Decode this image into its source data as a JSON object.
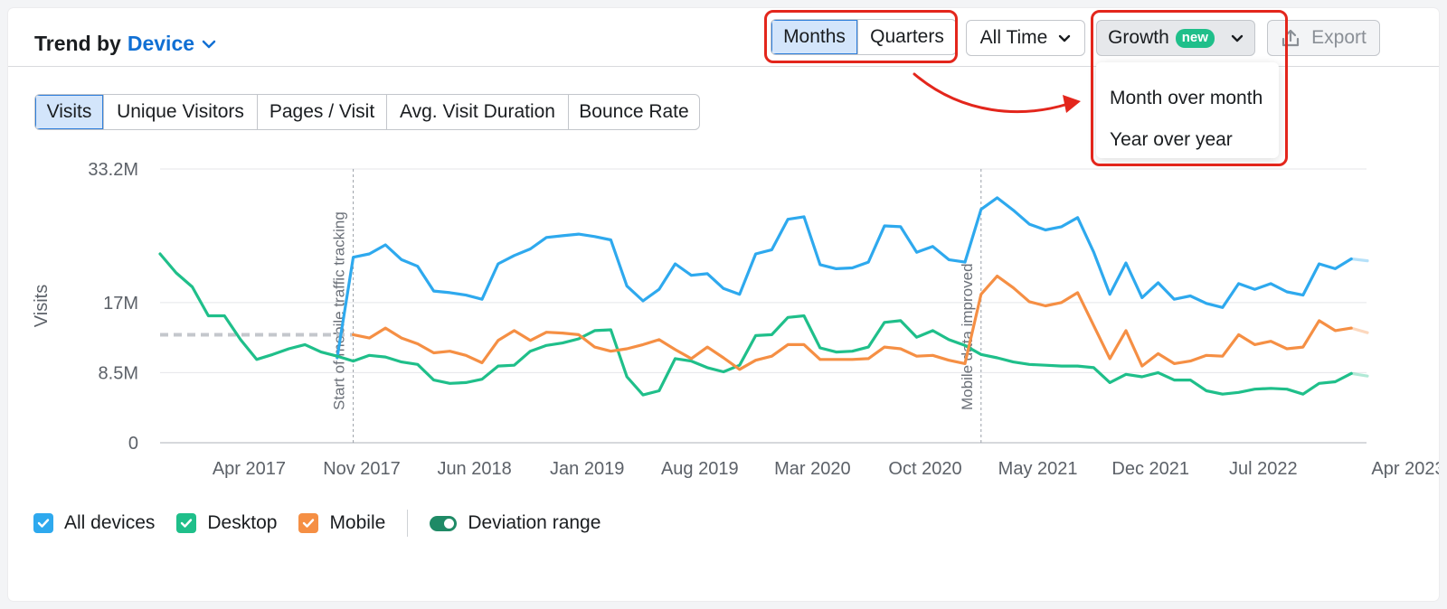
{
  "header": {
    "title_prefix": "Trend by",
    "title_dimension": "Device",
    "period_tabs": [
      "Months",
      "Quarters"
    ],
    "active_period": "Months",
    "time_range": "All Time",
    "growth_label": "Growth",
    "growth_badge": "new",
    "export_label": "Export"
  },
  "growth_menu": {
    "options": [
      "Month over month",
      "Year over year"
    ]
  },
  "metric_tabs": [
    "Visits",
    "Unique Visitors",
    "Pages / Visit",
    "Avg. Visit Duration",
    "Bounce Rate"
  ],
  "active_metric": "Visits",
  "legend": {
    "items": [
      {
        "label": "All devices",
        "color": "#2ea9ee"
      },
      {
        "label": "Desktop",
        "color": "#1fbf8a"
      },
      {
        "label": "Mobile",
        "color": "#f58f44"
      }
    ],
    "toggle_label": "Deviation range",
    "toggle_color": "#1f8a66"
  },
  "colors": {
    "accent": "#1170d4",
    "annotation": "#e3261c"
  },
  "chart_data": {
    "type": "line",
    "ylabel": "Visits",
    "y_ticks": [
      {
        "label": "0",
        "value": 0
      },
      {
        "label": "8.5M",
        "value": 8.5
      },
      {
        "label": "17M",
        "value": 17
      },
      {
        "label": "33.2M",
        "value": 33.2
      }
    ],
    "ylim": [
      0,
      33.2
    ],
    "x_ticks": [
      {
        "label": "Apr 2017",
        "index": 3
      },
      {
        "label": "Nov 2017",
        "index": 10
      },
      {
        "label": "Jun 2018",
        "index": 17
      },
      {
        "label": "Jan 2019",
        "index": 24
      },
      {
        "label": "Aug 2019",
        "index": 31
      },
      {
        "label": "Mar 2020",
        "index": 38
      },
      {
        "label": "Oct 2020",
        "index": 45
      },
      {
        "label": "May 2021",
        "index": 52
      },
      {
        "label": "Dec 2021",
        "index": 59
      },
      {
        "label": "Jul 2022",
        "index": 66
      },
      {
        "label": "Apr 2023",
        "index": 75
      }
    ],
    "first_month": "Jan 2017",
    "annotations": [
      {
        "label": "Start of mobile traffic tracking",
        "index": 12
      },
      {
        "label": "Mobile data improved",
        "index": 51
      }
    ],
    "legend_placement": "bottom-left",
    "grid": true,
    "series": [
      {
        "name": "All devices",
        "color": "#2ea9ee",
        "start_index": 0,
        "values": [
          null,
          null,
          null,
          null,
          null,
          null,
          null,
          null,
          null,
          null,
          null,
          10.3,
          22.5,
          22.9,
          24.0,
          22.2,
          21.4,
          18.4,
          18.2,
          17.9,
          17.4,
          21.7,
          22.7,
          23.5,
          24.9,
          25.1,
          25.3,
          25.0,
          24.6,
          19.0,
          17.2,
          18.6,
          21.7,
          20.3,
          20.5,
          18.7,
          18.0,
          22.9,
          23.4,
          27.1,
          27.4,
          21.6,
          21.1,
          21.2,
          21.9,
          26.3,
          26.2,
          23.1,
          23.8,
          22.2,
          21.9,
          28.3,
          29.7,
          28.2,
          26.5,
          25.8,
          26.2,
          27.3,
          23.1,
          18.0,
          21.8,
          17.6,
          19.4,
          17.4,
          17.8,
          16.9,
          16.4,
          19.3,
          18.6,
          19.3,
          18.3,
          17.9,
          21.7,
          21.1,
          22.3
        ]
      },
      {
        "name": "Desktop",
        "color": "#1fbf8a",
        "start_index": 0,
        "values": [
          22.9,
          20.6,
          18.9,
          15.4,
          15.4,
          12.5,
          10.1,
          10.7,
          11.4,
          11.9,
          11.0,
          10.5,
          9.9,
          10.6,
          10.4,
          9.8,
          9.5,
          7.6,
          7.2,
          7.3,
          7.7,
          9.3,
          9.4,
          11.1,
          11.8,
          12.1,
          12.6,
          13.6,
          13.7,
          8.0,
          5.8,
          6.3,
          10.2,
          9.9,
          9.1,
          8.6,
          9.4,
          13.0,
          13.1,
          15.2,
          15.4,
          11.5,
          11.0,
          11.1,
          11.6,
          14.6,
          14.8,
          12.8,
          13.6,
          12.5,
          11.8,
          10.7,
          10.3,
          9.8,
          9.5,
          9.4,
          9.3,
          9.3,
          9.1,
          7.3,
          8.3,
          8.0,
          8.5,
          7.6,
          7.6,
          6.3,
          5.9,
          6.1,
          6.5,
          6.6,
          6.5,
          5.9,
          7.2,
          7.4,
          8.4
        ]
      },
      {
        "name": "Mobile",
        "color": "#f58f44",
        "start_index": 0,
        "values": [
          null,
          null,
          null,
          null,
          null,
          null,
          null,
          null,
          null,
          null,
          null,
          null,
          13.1,
          12.7,
          13.9,
          12.7,
          12.0,
          10.9,
          11.1,
          10.6,
          9.7,
          12.4,
          13.6,
          12.4,
          13.4,
          13.3,
          13.1,
          11.6,
          11.1,
          11.4,
          11.9,
          12.5,
          11.3,
          10.2,
          11.6,
          10.3,
          8.9,
          10.0,
          10.5,
          11.9,
          11.9,
          10.1,
          10.1,
          10.1,
          10.2,
          11.6,
          11.4,
          10.5,
          10.6,
          10.0,
          9.6,
          18.0,
          20.2,
          18.8,
          17.1,
          16.6,
          17.0,
          18.2,
          14.2,
          10.2,
          13.6,
          9.3,
          10.8,
          9.6,
          9.9,
          10.6,
          10.5,
          13.1,
          11.9,
          12.3,
          11.4,
          11.6,
          14.8,
          13.6,
          13.9
        ]
      }
    ]
  }
}
